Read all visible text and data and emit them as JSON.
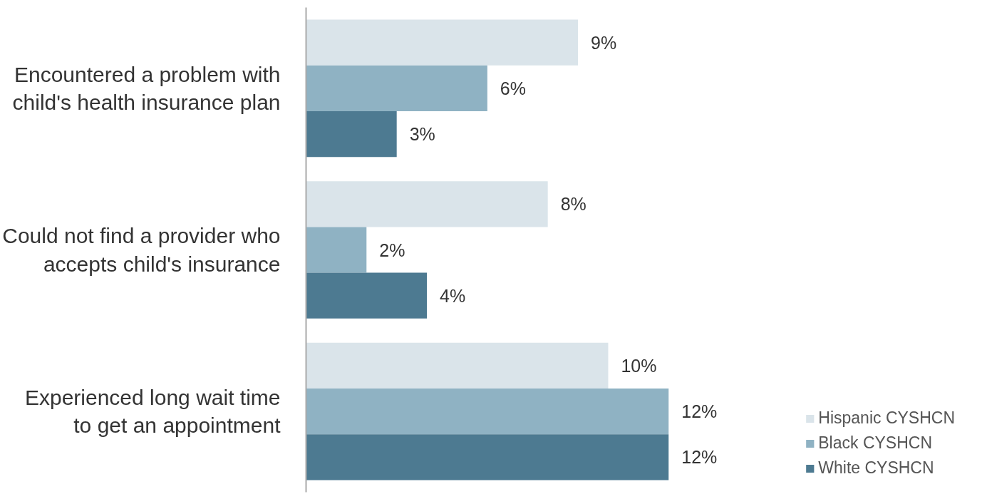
{
  "chart_data": {
    "type": "bar",
    "orientation": "horizontal",
    "categories": [
      "Encountered a problem with child's health insurance plan",
      "Could not find a provider who accepts child's insurance",
      "Experienced long wait time to get an appointment"
    ],
    "series": [
      {
        "name": "Hispanic CYSHCN",
        "color": "#dae4ea",
        "values": [
          9,
          8,
          10
        ],
        "value_labels": [
          "9%",
          "8%",
          "10%"
        ]
      },
      {
        "name": "Black CYSHCN",
        "color": "#8fb2c3",
        "values": [
          6,
          2,
          12
        ],
        "value_labels": [
          "6%",
          "2%",
          "12%"
        ]
      },
      {
        "name": "White CYSHCN",
        "color": "#4d7a91",
        "values": [
          3,
          4,
          12
        ],
        "value_labels": [
          "3%",
          "4%",
          "12%"
        ]
      }
    ],
    "tick_labels": "y",
    "grid": false,
    "legend": "bottom right"
  }
}
